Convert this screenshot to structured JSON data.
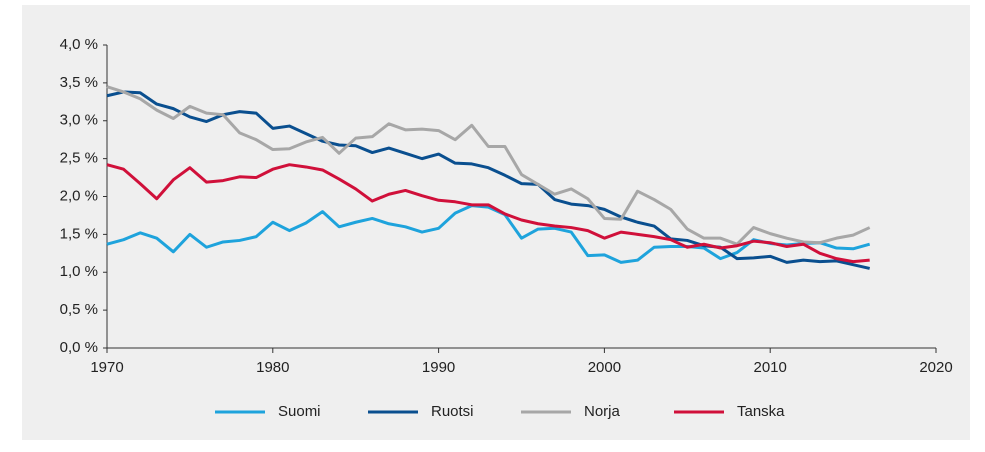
{
  "chart_data": {
    "type": "line",
    "x": [
      1970,
      1971,
      1972,
      1973,
      1974,
      1975,
      1976,
      1977,
      1978,
      1979,
      1980,
      1981,
      1982,
      1983,
      1984,
      1985,
      1986,
      1987,
      1988,
      1989,
      1990,
      1991,
      1992,
      1993,
      1994,
      1995,
      1996,
      1997,
      1998,
      1999,
      2000,
      2001,
      2002,
      2003,
      2004,
      2005,
      2006,
      2007,
      2008,
      2009,
      2010,
      2011,
      2012,
      2013,
      2014,
      2015,
      2016
    ],
    "series": [
      {
        "name": "Suomi",
        "color": "#1ea3dc",
        "values": [
          1.37,
          1.43,
          1.52,
          1.45,
          1.27,
          1.5,
          1.33,
          1.4,
          1.42,
          1.47,
          1.66,
          1.55,
          1.65,
          1.8,
          1.6,
          1.66,
          1.71,
          1.64,
          1.6,
          1.53,
          1.58,
          1.78,
          1.88,
          1.86,
          1.76,
          1.45,
          1.57,
          1.58,
          1.53,
          1.22,
          1.23,
          1.13,
          1.16,
          1.33,
          1.34,
          1.34,
          1.32,
          1.18,
          1.26,
          1.43,
          1.38,
          1.36,
          1.38,
          1.39,
          1.32,
          1.31,
          1.37
        ]
      },
      {
        "name": "Ruotsi",
        "color": "#0a4f8f",
        "values": [
          3.33,
          3.38,
          3.37,
          3.22,
          3.16,
          3.05,
          2.99,
          3.08,
          3.12,
          3.1,
          2.9,
          2.93,
          2.83,
          2.73,
          2.68,
          2.67,
          2.58,
          2.64,
          2.57,
          2.5,
          2.56,
          2.44,
          2.43,
          2.38,
          2.28,
          2.17,
          2.16,
          1.96,
          1.9,
          1.88,
          1.83,
          1.73,
          1.66,
          1.61,
          1.44,
          1.42,
          1.35,
          1.33,
          1.18,
          1.19,
          1.21,
          1.13,
          1.16,
          1.14,
          1.15,
          1.1,
          1.05
        ]
      },
      {
        "name": "Norja",
        "color": "#a7a7a7",
        "values": [
          3.45,
          3.38,
          3.29,
          3.14,
          3.03,
          3.19,
          3.1,
          3.08,
          2.84,
          2.75,
          2.62,
          2.63,
          2.72,
          2.78,
          2.57,
          2.77,
          2.79,
          2.96,
          2.88,
          2.89,
          2.87,
          2.75,
          2.94,
          2.66,
          2.66,
          2.29,
          2.16,
          2.03,
          2.1,
          1.97,
          1.71,
          1.7,
          2.07,
          1.96,
          1.83,
          1.57,
          1.45,
          1.45,
          1.37,
          1.59,
          1.51,
          1.45,
          1.4,
          1.39,
          1.45,
          1.49,
          1.59
        ]
      },
      {
        "name": "Tanska",
        "color": "#d0103a",
        "values": [
          2.42,
          2.36,
          2.17,
          1.97,
          2.22,
          2.38,
          2.19,
          2.21,
          2.26,
          2.25,
          2.36,
          2.42,
          2.39,
          2.35,
          2.23,
          2.1,
          1.94,
          2.03,
          2.08,
          2.01,
          1.95,
          1.93,
          1.89,
          1.89,
          1.77,
          1.69,
          1.64,
          1.61,
          1.59,
          1.55,
          1.45,
          1.53,
          1.5,
          1.47,
          1.43,
          1.33,
          1.37,
          1.32,
          1.35,
          1.41,
          1.39,
          1.34,
          1.37,
          1.25,
          1.18,
          1.14,
          1.16
        ]
      }
    ],
    "xlim": [
      1970,
      2020
    ],
    "xticks": [
      1970,
      1980,
      1990,
      2000,
      2010,
      2020
    ],
    "ylim": [
      0,
      4
    ],
    "yticks": [
      {
        "value": 0,
        "label": "0,0 %"
      },
      {
        "value": 0.5,
        "label": "0,5 %"
      },
      {
        "value": 1,
        "label": "1,0 %"
      },
      {
        "value": 1.5,
        "label": "1,5 %"
      },
      {
        "value": 2,
        "label": "2,0 %"
      },
      {
        "value": 2.5,
        "label": "2,5 %"
      },
      {
        "value": 3,
        "label": "3,0 %"
      },
      {
        "value": 3.5,
        "label": "3,5 %"
      },
      {
        "value": 4,
        "label": "4,0 %"
      }
    ],
    "grid": false,
    "legend": "bottom"
  }
}
